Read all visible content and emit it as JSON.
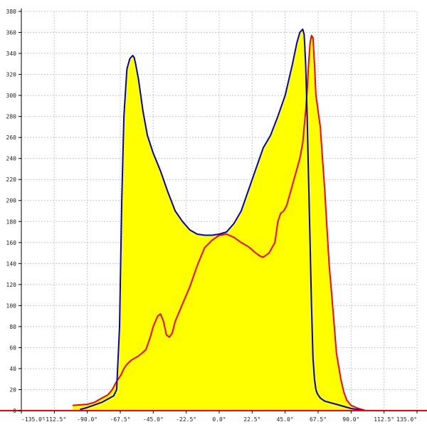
{
  "chart_data": {
    "type": "area",
    "title": "",
    "xlabel": "",
    "ylabel": "",
    "xlim": [
      -135,
      135
    ],
    "ylim": [
      0,
      380
    ],
    "grid": true,
    "x_ticks": [
      -135,
      -112.5,
      -90,
      -67.5,
      -45,
      -22.5,
      0,
      22.5,
      45,
      67.5,
      90,
      112.5,
      135
    ],
    "x_tick_labels": [
      "-135.0°",
      "-112.5°",
      "-90.0°",
      "-67.5°",
      "-45.0°",
      "-22.5°",
      "0.0°",
      "22.5°",
      "45.0°",
      "67.5°",
      "90.0°",
      "112.5°",
      "135.0°"
    ],
    "y_ticks": [
      0,
      20,
      40,
      60,
      80,
      100,
      120,
      140,
      160,
      180,
      200,
      220,
      240,
      260,
      280,
      300,
      320,
      340,
      360,
      380
    ],
    "y_tick_labels": [
      "0",
      "20",
      "40",
      "60",
      "80",
      "100",
      "120",
      "140",
      "160",
      "180",
      "200",
      "220",
      "240",
      "260",
      "280",
      "300",
      "320",
      "340",
      "360",
      "380"
    ],
    "fill_color": "#ffff00",
    "series": [
      {
        "color": "#0000cc",
        "x": [
          -95,
          -90,
          -80,
          -72,
          -70,
          -68,
          -66.5,
          -65,
          -63,
          -61,
          -59,
          -58,
          -57,
          -55,
          -52,
          -49,
          -45,
          -40,
          -35,
          -30,
          -25,
          -20,
          -15,
          -10,
          -5,
          0,
          5,
          10,
          15,
          20,
          25,
          30,
          35,
          40,
          45,
          50,
          53,
          55,
          57,
          58,
          59,
          60,
          61,
          62,
          63,
          64,
          65,
          66,
          67,
          69,
          72,
          80,
          90,
          100
        ],
        "y": [
          1,
          3,
          8,
          14,
          20,
          80,
          200,
          280,
          325,
          335,
          338,
          336,
          330,
          315,
          285,
          262,
          245,
          228,
          208,
          190,
          180,
          172,
          168,
          167,
          167,
          168,
          170,
          178,
          190,
          210,
          230,
          250,
          262,
          280,
          300,
          330,
          350,
          360,
          363,
          358,
          330,
          280,
          220,
          160,
          100,
          50,
          30,
          20,
          16,
          12,
          9,
          6,
          2,
          0
        ]
      },
      {
        "color": "#ff0000",
        "x": [
          -100,
          -90,
          -85,
          -80,
          -76,
          -73,
          -70,
          -67,
          -65,
          -63,
          -60,
          -55,
          -50,
          -47,
          -45,
          -42,
          -40,
          -38,
          -36,
          -34,
          -32,
          -30,
          -27,
          -24,
          -20,
          -15,
          -10,
          -5,
          0,
          5,
          10,
          15,
          20,
          25,
          28,
          30,
          32,
          34,
          36,
          38,
          40,
          42,
          44,
          46,
          50,
          55,
          57,
          58,
          59,
          60,
          61,
          62,
          63,
          64,
          65,
          66,
          67,
          68,
          69,
          70,
          72,
          75,
          78,
          80,
          83,
          85,
          87,
          90,
          95,
          100
        ],
        "y": [
          5,
          6,
          8,
          12,
          15,
          20,
          28,
          34,
          40,
          44,
          48,
          52,
          58,
          70,
          80,
          90,
          92,
          85,
          72,
          70,
          74,
          85,
          95,
          105,
          118,
          138,
          155,
          162,
          167,
          168,
          165,
          160,
          156,
          150,
          147,
          146,
          148,
          150,
          155,
          160,
          180,
          188,
          190,
          195,
          215,
          240,
          255,
          270,
          285,
          305,
          330,
          350,
          357,
          355,
          330,
          300,
          290,
          280,
          270,
          250,
          210,
          140,
          90,
          55,
          30,
          18,
          10,
          5,
          2,
          0
        ]
      }
    ]
  }
}
